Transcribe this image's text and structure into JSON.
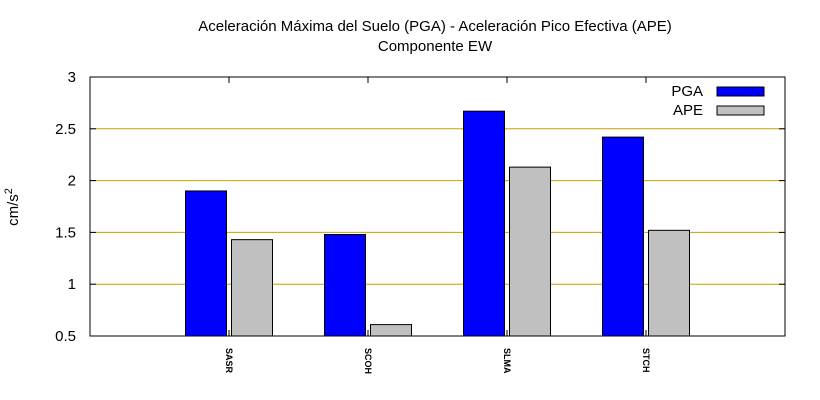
{
  "chart_data": {
    "type": "bar",
    "title": "Aceleración Máxima del Suelo (PGA) -  Aceleración Pico Efectiva (APE)",
    "subtitle": "Componente EW",
    "ylabel": {
      "base": "cm/s",
      "superscript": "2"
    },
    "xlabel": "",
    "categories": [
      "SASR",
      "SCOH",
      "SLMA",
      "STCH"
    ],
    "ylim": [
      0.5,
      3
    ],
    "yticks": [
      0.5,
      1,
      1.5,
      2,
      2.5,
      3
    ],
    "grid": true,
    "legend_position": "top-right",
    "series": [
      {
        "name": "PGA",
        "values": [
          1.9,
          1.48,
          2.67,
          2.42
        ],
        "color": "#0000ff"
      },
      {
        "name": "APE",
        "values": [
          1.43,
          0.61,
          2.13,
          1.52
        ],
        "color": "#c0c0c0"
      }
    ],
    "gridline_color": "#c8a000"
  }
}
